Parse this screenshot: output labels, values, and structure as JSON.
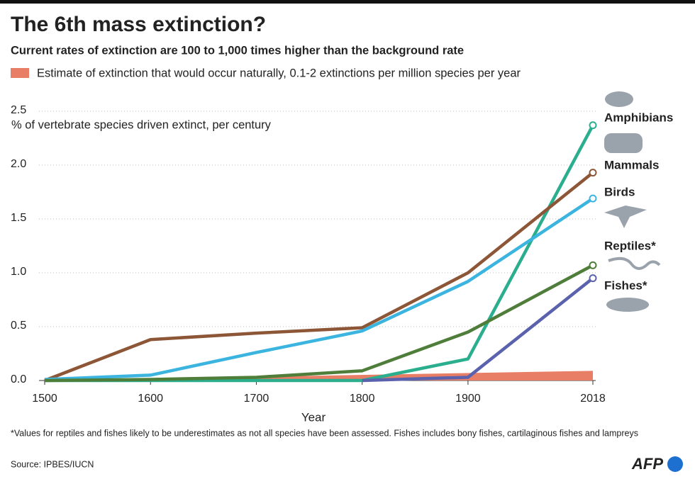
{
  "chart_data": {
    "type": "line",
    "title": "The 6th mass extinction?",
    "subtitle": "Current rates of extinction are 100 to 1,000 times higher than the background rate",
    "y_label": "% of vertebrate species driven extinct, per century",
    "x_label": "Year",
    "x": [
      1500,
      1600,
      1700,
      1800,
      1900,
      2018
    ],
    "series": [
      {
        "name": "Amphibians",
        "color": "#2aae8e",
        "values": [
          0,
          0,
          0,
          0,
          0.2,
          2.37
        ]
      },
      {
        "name": "Mammals",
        "color": "#8c5637",
        "values": [
          0,
          0.38,
          0.44,
          0.49,
          1.0,
          1.93
        ]
      },
      {
        "name": "Birds",
        "color": "#3cb4e0",
        "values": [
          0.01,
          0.05,
          0.26,
          0.46,
          0.92,
          1.69
        ]
      },
      {
        "name": "Reptiles*",
        "color": "#4f7e3a",
        "values": [
          0,
          0.01,
          0.03,
          0.09,
          0.45,
          1.07
        ]
      },
      {
        "name": "Fishes*",
        "color": "#5a62ae",
        "values": [
          null,
          null,
          null,
          0,
          0.03,
          0.95
        ]
      }
    ],
    "background": {
      "name": "Estimate of extinction that would occur naturally, 0.1-2 extinctions per million species per year",
      "color": "#e97e66",
      "x": [
        1500,
        2018
      ],
      "values": [
        0,
        0.09
      ]
    },
    "xlim": [
      1500,
      2018
    ],
    "xticks": [
      1500,
      1600,
      1700,
      1800,
      1900,
      2018
    ],
    "ylim": [
      0,
      2.5
    ],
    "yticks": [
      {
        "value": 0,
        "label": "0.0"
      },
      0.5,
      {
        "value": 1,
        "label": "1.0"
      },
      1.5,
      {
        "value": 2,
        "label": "2.0"
      },
      2.5
    ],
    "grid": true,
    "footnote": "*Values for reptiles and fishes likely to be underestimates as not all species have been assessed. Fishes includes bony fishes, cartilaginous fishes and lampreys",
    "source": "Source: IPBES/IUCN",
    "logo": "AFP"
  }
}
